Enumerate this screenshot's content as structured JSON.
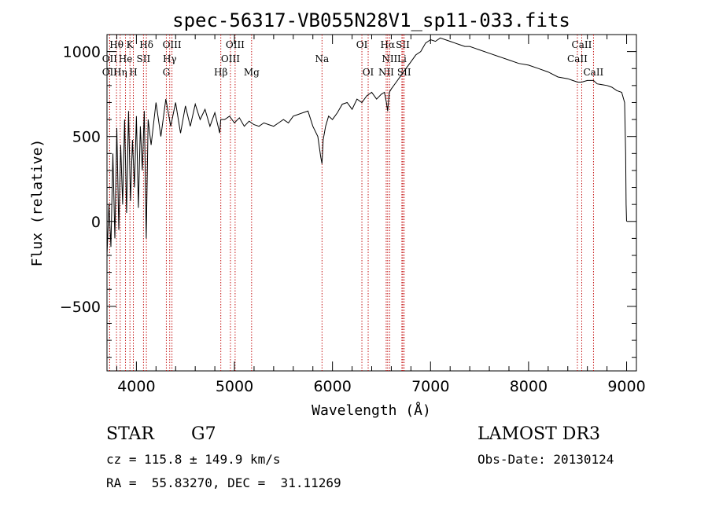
{
  "chart_data": {
    "type": "line",
    "title": "spec-56317-VB055N28V1_sp11-033.fits",
    "xlabel": "Wavelength (Å)",
    "ylabel": "Flux (relative)",
    "xlim": [
      3700,
      9100
    ],
    "ylim": [
      -880,
      1100
    ],
    "x_ticks": [
      4000,
      5000,
      6000,
      7000,
      8000,
      9000
    ],
    "x_tick_labels": [
      "4000",
      "5000",
      "6000",
      "7000",
      "8000",
      "9000"
    ],
    "y_ticks": [
      -500,
      0,
      500,
      1000
    ],
    "y_tick_labels": [
      "−500",
      "0",
      "500",
      "1000"
    ],
    "line_color": "#000000",
    "marker_color": "#c00000",
    "series": [
      {
        "name": "flux",
        "x": [
          3700,
          3720,
          3740,
          3760,
          3780,
          3800,
          3820,
          3840,
          3860,
          3880,
          3900,
          3920,
          3940,
          3960,
          3980,
          4000,
          4020,
          4040,
          4060,
          4080,
          4100,
          4120,
          4150,
          4200,
          4250,
          4300,
          4350,
          4400,
          4450,
          4500,
          4550,
          4600,
          4650,
          4700,
          4750,
          4800,
          4850,
          4860,
          4900,
          4950,
          5000,
          5050,
          5100,
          5150,
          5200,
          5250,
          5300,
          5350,
          5400,
          5450,
          5500,
          5550,
          5600,
          5650,
          5700,
          5750,
          5800,
          5850,
          5880,
          5893,
          5905,
          5930,
          5960,
          6000,
          6050,
          6100,
          6150,
          6200,
          6250,
          6300,
          6350,
          6400,
          6450,
          6500,
          6530,
          6550,
          6563,
          6580,
          6600,
          6650,
          6700,
          6750,
          6800,
          6850,
          6900,
          6950,
          7000,
          7050,
          7100,
          7150,
          7200,
          7250,
          7300,
          7350,
          7400,
          7450,
          7500,
          7600,
          7700,
          7800,
          7900,
          8000,
          8100,
          8200,
          8300,
          8400,
          8450,
          8500,
          8542,
          8600,
          8662,
          8700,
          8800,
          8850,
          8900,
          8950,
          8980,
          8990,
          8995,
          9000
        ],
        "values": [
          -200,
          100,
          -150,
          400,
          -100,
          550,
          -50,
          450,
          100,
          600,
          50,
          650,
          120,
          480,
          200,
          620,
          80,
          560,
          300,
          650,
          -100,
          600,
          450,
          700,
          500,
          720,
          560,
          700,
          520,
          680,
          560,
          690,
          600,
          660,
          560,
          640,
          520,
          600,
          600,
          620,
          580,
          610,
          560,
          590,
          570,
          560,
          580,
          570,
          560,
          580,
          600,
          580,
          620,
          630,
          640,
          650,
          560,
          500,
          380,
          340,
          480,
          560,
          620,
          600,
          640,
          690,
          700,
          660,
          720,
          700,
          740,
          760,
          720,
          750,
          760,
          700,
          650,
          760,
          780,
          820,
          860,
          900,
          940,
          980,
          1000,
          1050,
          1070,
          1060,
          1080,
          1070,
          1060,
          1050,
          1040,
          1030,
          1030,
          1020,
          1010,
          990,
          970,
          950,
          930,
          920,
          900,
          880,
          850,
          840,
          830,
          820,
          820,
          830,
          830,
          810,
          800,
          790,
          770,
          760,
          700,
          400,
          100,
          0
        ]
      }
    ],
    "line_markers": [
      {
        "label": "Hθ",
        "wave": 3797,
        "row": 0
      },
      {
        "label": "K",
        "wave": 3934,
        "row": 0
      },
      {
        "label": "Hδ",
        "wave": 4102,
        "row": 0
      },
      {
        "label": "OIII",
        "wave": 4363,
        "row": 0
      },
      {
        "label": "OIII",
        "wave": 5007,
        "row": 0
      },
      {
        "label": "OI",
        "wave": 6300,
        "row": 0
      },
      {
        "label": "Hα",
        "wave": 6563,
        "row": 0
      },
      {
        "label": "SII",
        "wave": 6717,
        "row": 0
      },
      {
        "label": "CaII",
        "wave": 8542,
        "row": 0
      },
      {
        "label": "OII",
        "wave": 3727,
        "row": 1
      },
      {
        "label": "He",
        "wave": 3889,
        "row": 1
      },
      {
        "label": "SII",
        "wave": 4072,
        "row": 1
      },
      {
        "label": "Hγ",
        "wave": 4340,
        "row": 1
      },
      {
        "label": "OIII",
        "wave": 4959,
        "row": 1
      },
      {
        "label": "Na",
        "wave": 5893,
        "row": 1
      },
      {
        "label": "NII",
        "wave": 6583,
        "row": 1
      },
      {
        "label": "Li",
        "wave": 6708,
        "row": 1
      },
      {
        "label": "CaII",
        "wave": 8498,
        "row": 1
      },
      {
        "label": "OII",
        "wave": 3727,
        "row": 2
      },
      {
        "label": "Hη",
        "wave": 3835,
        "row": 2
      },
      {
        "label": "H",
        "wave": 3969,
        "row": 2
      },
      {
        "label": "G",
        "wave": 4305,
        "row": 2
      },
      {
        "label": "Hβ",
        "wave": 4861,
        "row": 2
      },
      {
        "label": "Mg",
        "wave": 5175,
        "row": 2
      },
      {
        "label": "OI",
        "wave": 6364,
        "row": 2
      },
      {
        "label": "NII",
        "wave": 6548,
        "row": 2
      },
      {
        "label": "SII",
        "wave": 6731,
        "row": 2
      },
      {
        "label": "CaII",
        "wave": 8662,
        "row": 2
      }
    ]
  },
  "info": {
    "object_class": "STAR",
    "subclass": "G7",
    "survey": "LAMOST DR3",
    "redshift": "cz = 115.8 ± 149.9 km/s",
    "obs_date": "Obs-Date: 20130124",
    "coords": "RA =  55.83270, DEC =  31.11269"
  }
}
